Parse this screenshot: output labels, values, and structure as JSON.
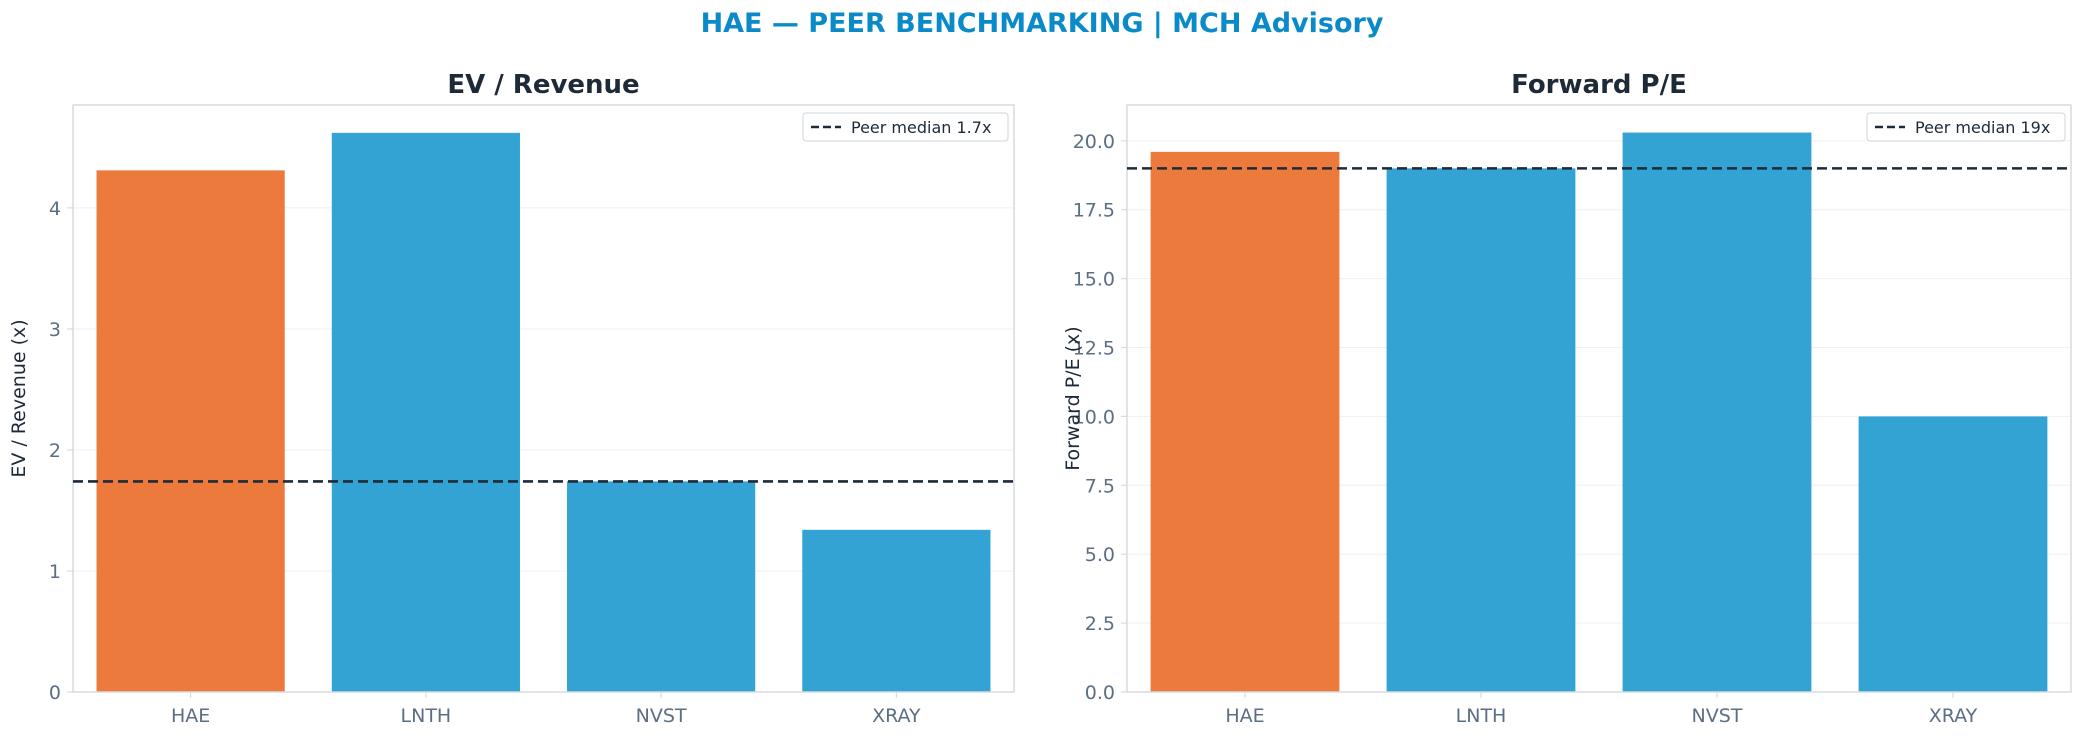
{
  "suptitle": "HAE — PEER BENCHMARKING | MCH Advisory",
  "colors": {
    "title": "#0b8ac9",
    "highlight": "#ed7a3d",
    "peer": "#33a3d3",
    "median_line": "#1e2a38",
    "axis_spine": "#d6dbe1",
    "grid": "#eef1f4",
    "tick_text": "#5b6e83"
  },
  "chart_data": [
    {
      "type": "bar",
      "title": "EV / Revenue",
      "xlabel": "",
      "ylabel": "EV / Revenue (x)",
      "categories": [
        "HAE",
        "LNTH",
        "NVST",
        "XRAY"
      ],
      "values": [
        4.31,
        4.62,
        1.74,
        1.34
      ],
      "highlight_category": "HAE",
      "ylim": [
        0,
        4.85
      ],
      "yticks": [
        0,
        1,
        2,
        3,
        4
      ],
      "ytick_labels": [
        "0",
        "1",
        "2",
        "3",
        "4"
      ],
      "reference_line": {
        "value": 1.74,
        "label": "Peer median 1.7x",
        "style": "dashed"
      },
      "legend_position": "top-right",
      "grid": "horizontal"
    },
    {
      "type": "bar",
      "title": "Forward P/E",
      "xlabel": "",
      "ylabel": "Forward P/E (x)",
      "categories": [
        "HAE",
        "LNTH",
        "NVST",
        "XRAY"
      ],
      "values": [
        19.6,
        19.0,
        20.3,
        10.0
      ],
      "highlight_category": "HAE",
      "ylim": [
        0,
        21.3
      ],
      "yticks": [
        0,
        2.5,
        5,
        7.5,
        10,
        12.5,
        15,
        17.5,
        20
      ],
      "ytick_labels": [
        "0.0",
        "2.5",
        "5.0",
        "7.5",
        "10.0",
        "12.5",
        "15.0",
        "17.5",
        "20.0"
      ],
      "reference_line": {
        "value": 19.0,
        "label": "Peer median 19x",
        "style": "dashed"
      },
      "legend_position": "top-right",
      "grid": "horizontal"
    }
  ]
}
